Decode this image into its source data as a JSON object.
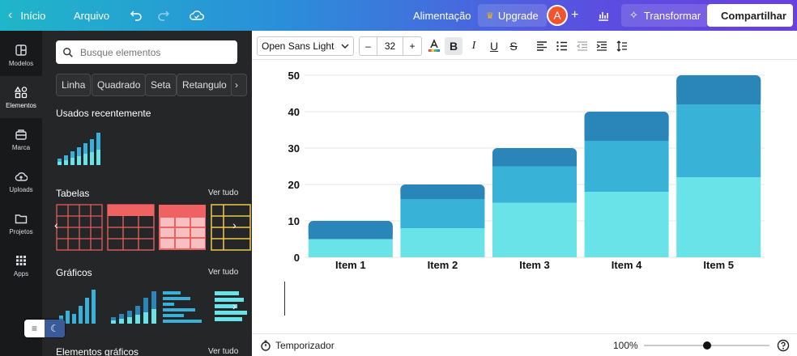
{
  "topbar": {
    "back_label": "Início",
    "file_label": "Arquivo",
    "doc_title": "Alimentação",
    "upgrade_label": "Upgrade",
    "avatar_initial": "A",
    "transform_label": "Transformar",
    "share_label": "Compartilhar"
  },
  "rail": {
    "items": [
      {
        "label": "Modelos",
        "icon": "layout-icon"
      },
      {
        "label": "Elementos",
        "icon": "shapes-icon"
      },
      {
        "label": "Marca",
        "icon": "brand-icon"
      },
      {
        "label": "Uploads",
        "icon": "cloud-upload-icon"
      },
      {
        "label": "Projetos",
        "icon": "folder-icon"
      },
      {
        "label": "Apps",
        "icon": "grid-icon"
      }
    ]
  },
  "panel": {
    "search_placeholder": "Busque elementos",
    "chips": [
      "Linha",
      "Quadrado",
      "Seta",
      "Retangulo"
    ],
    "recent_title": "Usados recentemente",
    "tables_title": "Tabelas",
    "charts_title": "Gráficos",
    "graphic_elements_title": "Elementos gráficos",
    "see_all": "Ver tudo"
  },
  "toolbar": {
    "font_name": "Open Sans Light",
    "font_size": "32",
    "minus": "–",
    "plus": "+"
  },
  "bottombar": {
    "timer_label": "Temporizador",
    "zoom": "100%",
    "zoom_fraction": 0.5
  },
  "colors": {
    "light": "#69e3e8",
    "mid": "#38b2d6",
    "dark": "#2a86b8"
  },
  "chart_data": {
    "type": "bar",
    "stacked": true,
    "categories": [
      "Item 1",
      "Item 2",
      "Item 3",
      "Item 4",
      "Item 5"
    ],
    "series": [
      {
        "values": [
          5,
          8,
          15,
          18,
          22
        ]
      },
      {
        "values": [
          0,
          8,
          10,
          14,
          20
        ]
      },
      {
        "values": [
          5,
          4,
          5,
          8,
          8
        ]
      }
    ],
    "ylim": [
      0,
      50
    ],
    "yticks": [
      "0",
      "10",
      "20",
      "30",
      "40",
      "50"
    ],
    "grid": true
  }
}
